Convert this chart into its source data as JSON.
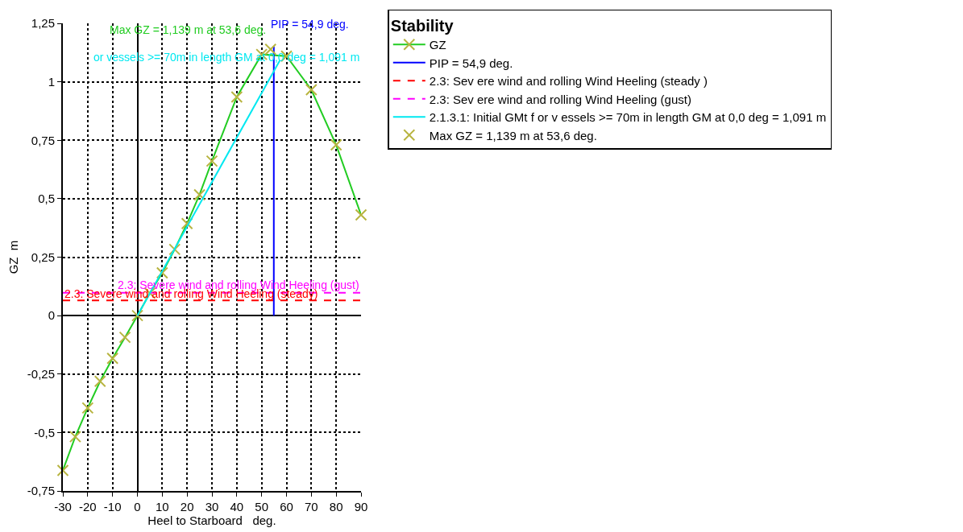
{
  "chart_data": {
    "type": "line",
    "xlabel": "Heel to Starboard   deg.",
    "ylabel": "GZ  m",
    "legend_title": "Stability",
    "xlim": [
      -30,
      90
    ],
    "xticks": [
      -30,
      -20,
      -10,
      0,
      10,
      20,
      30,
      40,
      50,
      60,
      70,
      80,
      90
    ],
    "ylim": [
      -0.75,
      1.25
    ],
    "yticks": [
      {
        "value": -0.75,
        "label": "-0,75"
      },
      {
        "value": -0.5,
        "label": "-0,5"
      },
      {
        "value": -0.25,
        "label": "-0,25"
      },
      0,
      {
        "value": 0.25,
        "label": "0,25"
      },
      {
        "value": 0.5,
        "label": "0,5"
      },
      {
        "value": 0.75,
        "label": "0,75"
      },
      1,
      {
        "value": 1.25,
        "label": "1,25"
      }
    ],
    "grid": true,
    "legend": "top right",
    "series": [
      {
        "name": "GZ",
        "color": "#22cc22",
        "marker": "cross",
        "x": [
          -30,
          -25,
          -20,
          -15,
          -10,
          -5,
          0,
          5,
          10,
          15,
          20,
          25,
          30,
          40,
          50,
          60,
          70,
          80,
          90
        ],
        "values": [
          -0.662,
          -0.518,
          -0.395,
          -0.281,
          -0.183,
          -0.093,
          0,
          0.096,
          0.183,
          0.283,
          0.394,
          0.517,
          0.661,
          0.935,
          1.117,
          1.11,
          0.966,
          0.73,
          0.431
        ],
        "colors": [
          "#b8b440",
          "#b8b440",
          "#b8b440",
          "#b8b440",
          "#b8b440",
          "#b8b440",
          "#b8b440",
          "#b8b440",
          "#b8b440",
          "#b8b440",
          "#b8b440",
          "#b8b440",
          "#b8b440",
          "#b8b440",
          "#b8b440",
          "#b8b440",
          "#b8b440",
          "#b8b440",
          "#b8b440"
        ]
      },
      {
        "name": "PIP = 54,9 deg.",
        "color": "#0000ff",
        "x": [
          54.9,
          54.9
        ],
        "values": [
          0,
          1.15
        ]
      },
      {
        "name": "2.3: Sev ere wind and rolling Wind Heeling (steady )",
        "line_style": "dashed",
        "color": "#ff0000",
        "x": [
          -30,
          90
        ],
        "values": [
          0.065,
          0.065
        ]
      },
      {
        "name": "2.3: Sev ere wind and rolling Wind Heeling (gust)",
        "line_style": "dashed",
        "color": "#ff00ff",
        "x": [
          -30,
          90
        ],
        "values": [
          0.098,
          0.098
        ]
      },
      {
        "name": "2.1.3.1: Initial GMt f or v essels >= 70m in length GM at 0,0 deg = 1,091 m",
        "color": "#00e8f0",
        "x": [
          0,
          57.3
        ],
        "values": [
          0,
          1.091
        ]
      },
      {
        "name": "Max GZ = 1,139 m at 53,6 deg.",
        "type": "scatter",
        "marker": "cross",
        "color": "#b8b440",
        "x": [
          53.6
        ],
        "values": [
          1.139
        ]
      }
    ],
    "annotations": [
      {
        "text": "Max GZ = 1,139 m at 53,6 deg.",
        "x": 53.6,
        "y": 1.139
      },
      {
        "text": "PIP = 54,9 deg.",
        "x": 54.9,
        "y": 1.15
      },
      "or vessels >= 70m in length GM at 0,0 deg = 1,091 m",
      {
        "text": "2.3: Severe wind and rolling Wind Heeling (steady)",
        "x": -30,
        "y": 0.065
      },
      {
        "text": "2.3: Severe wind and rolling Wind Heeling (gust)",
        "x": 90,
        "y": 0.098
      }
    ]
  }
}
